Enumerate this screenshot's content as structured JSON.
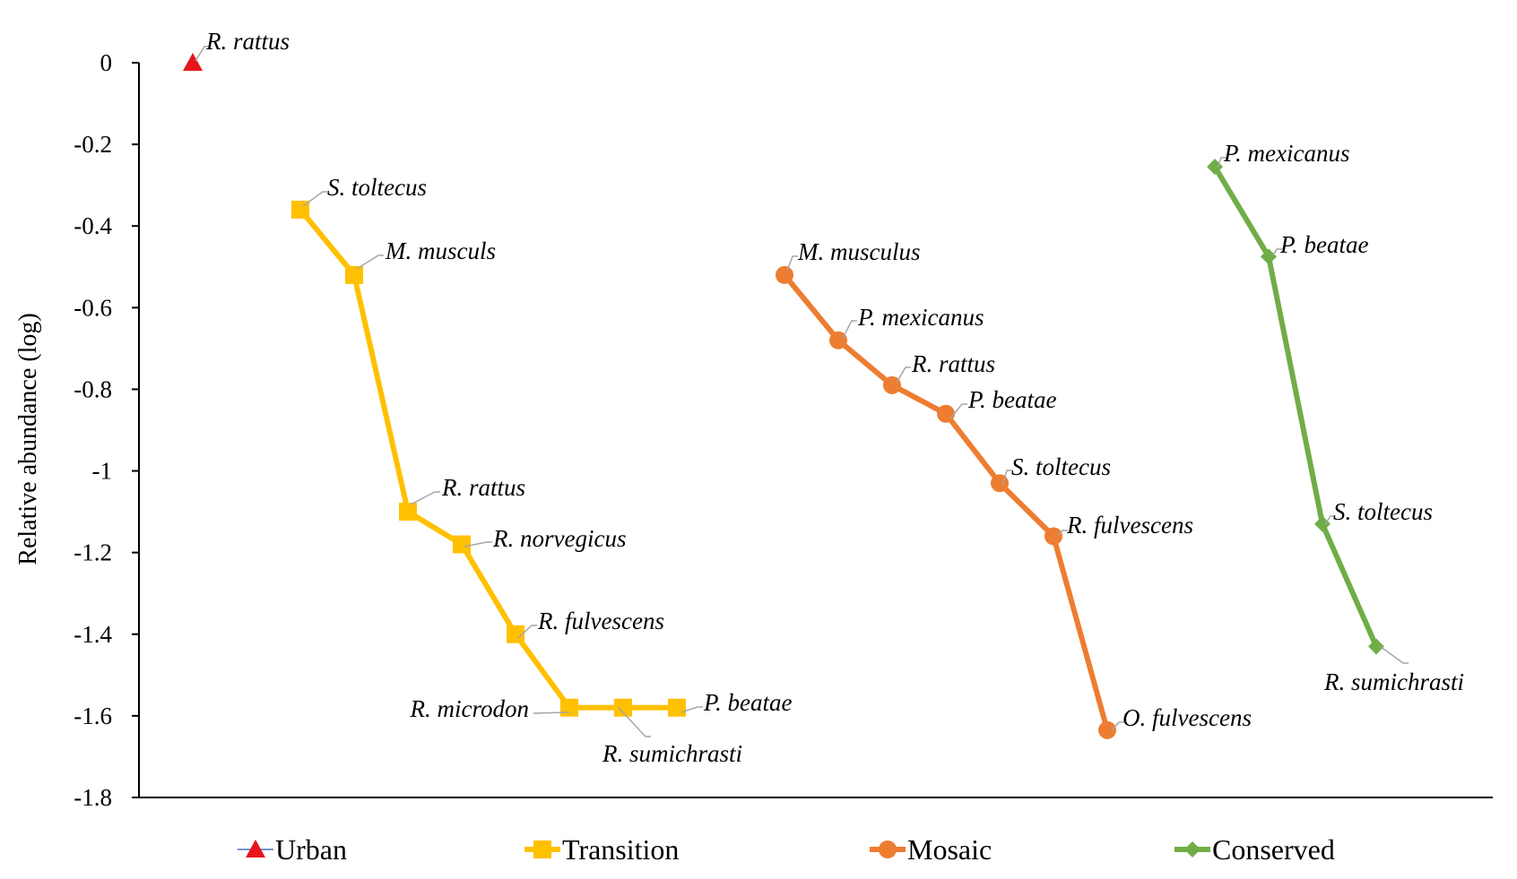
{
  "chart_data": {
    "type": "line",
    "title": "",
    "xlabel": "",
    "ylabel": "Relative abundance (log)",
    "ylim": [
      -1.8,
      0
    ],
    "yticks": [
      "0",
      "-0.2",
      "-0.4",
      "-0.6",
      "-0.8",
      "-1",
      "-1.2",
      "-1.4",
      "-1.6",
      "-1.8"
    ],
    "grid": false,
    "legend_position": "bottom",
    "series": [
      {
        "name": "Urban",
        "color": "#E8141B",
        "line_color": "#4472C4",
        "marker": "triangle",
        "points": [
          {
            "label": "R. rattus",
            "y": 0.0
          }
        ]
      },
      {
        "name": "Transition",
        "color": "#FFC000",
        "marker": "square",
        "points": [
          {
            "label": "S. toltecus",
            "y": -0.36
          },
          {
            "label": "M. musculs",
            "y": -0.52
          },
          {
            "label": "R. rattus",
            "y": -1.1
          },
          {
            "label": "R. norvegicus",
            "y": -1.18
          },
          {
            "label": "R. fulvescens",
            "y": -1.4
          },
          {
            "label": "R. microdon",
            "y": -1.58
          },
          {
            "label": "R. sumichrasti",
            "y": -1.58
          },
          {
            "label": "P. beatae",
            "y": -1.58
          }
        ]
      },
      {
        "name": "Mosaic",
        "color": "#ED7D31",
        "marker": "circle",
        "points": [
          {
            "label": "M. musculus",
            "y": -0.52
          },
          {
            "label": "P. mexicanus",
            "y": -0.68
          },
          {
            "label": "R. rattus",
            "y": -0.79
          },
          {
            "label": "P. beatae",
            "y": -0.86
          },
          {
            "label": "S. toltecus",
            "y": -1.03
          },
          {
            "label": "R. fulvescens",
            "y": -1.16
          },
          {
            "label": "O. fulvescens",
            "y": -1.635
          }
        ]
      },
      {
        "name": "Conserved",
        "color": "#70AD47",
        "marker": "diamond",
        "points": [
          {
            "label": "P. mexicanus",
            "y": -0.255
          },
          {
            "label": "P. beatae",
            "y": -0.475
          },
          {
            "label": "S. toltecus",
            "y": -1.13
          },
          {
            "label": "R. sumichrasti",
            "y": -1.43
          }
        ]
      }
    ]
  }
}
